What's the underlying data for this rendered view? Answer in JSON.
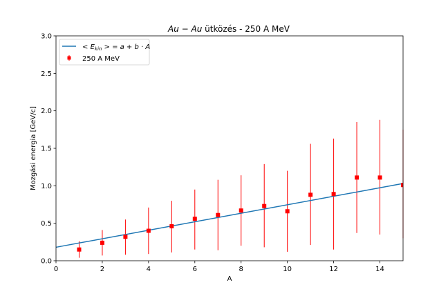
{
  "chart_data": {
    "type": "scatter",
    "title_math": "Au − Au",
    "title_rest": " ütközés - 250 A MeV",
    "xlabel": "A",
    "ylabel": "Mozgási energia [GeV/c]",
    "xlim": [
      0,
      15
    ],
    "ylim": [
      0,
      3.0
    ],
    "xticks": [
      0,
      2,
      4,
      6,
      8,
      10,
      12,
      14
    ],
    "yticks": [
      0.0,
      0.5,
      1.0,
      1.5,
      2.0,
      2.5,
      3.0
    ],
    "xtick_labels": [
      "0",
      "2",
      "4",
      "6",
      "8",
      "10",
      "12",
      "14"
    ],
    "ytick_labels": [
      "0.0",
      "0.5",
      "1.0",
      "1.5",
      "2.0",
      "2.5",
      "3.0"
    ],
    "grid": false,
    "legend_position": "upper-left",
    "series": [
      {
        "name": "250 A MeV",
        "kind": "errorbar",
        "color": "#ff0000",
        "marker": "square",
        "x": [
          1,
          2,
          3,
          4,
          5,
          6,
          7,
          8,
          9,
          10,
          11,
          12,
          13,
          14,
          15
        ],
        "y": [
          0.15,
          0.24,
          0.32,
          0.4,
          0.46,
          0.56,
          0.61,
          0.67,
          0.73,
          0.66,
          0.88,
          0.89,
          1.11,
          1.11,
          1.01
        ],
        "yerr_low": [
          0.04,
          0.07,
          0.08,
          0.09,
          0.11,
          0.15,
          0.14,
          0.2,
          0.18,
          0.12,
          0.21,
          0.15,
          0.37,
          0.35,
          0.3
        ],
        "yerr_high": [
          0.26,
          0.41,
          0.55,
          0.71,
          0.8,
          0.95,
          1.08,
          1.14,
          1.29,
          1.2,
          1.56,
          1.63,
          1.85,
          1.88,
          1.75
        ]
      },
      {
        "name": "< E_kin > = a + b · A",
        "name_parts": {
          "lhs_open": "< ",
          "E": "E",
          "sub": "kin",
          "rhs": " > = a + b · A"
        },
        "kind": "line",
        "color": "#1f77b4",
        "a": 0.18,
        "b": 0.0567
      }
    ]
  }
}
